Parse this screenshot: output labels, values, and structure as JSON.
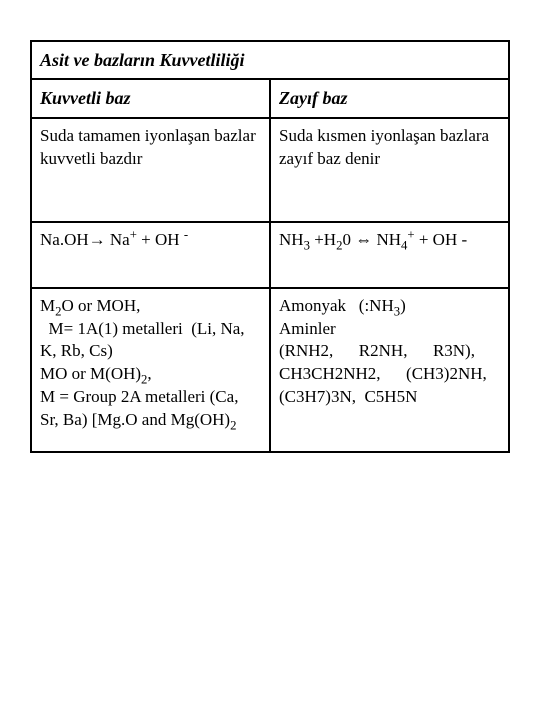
{
  "table": {
    "border_color": "#000000",
    "background_color": "#ffffff",
    "font_family": "Times New Roman",
    "title": "Asit ve bazların Kuvvetliliği",
    "headers": {
      "left": "Kuvvetli baz",
      "right": "Zayıf baz"
    },
    "rows": [
      {
        "left": "Suda tamamen iyonlaşan bazlar kuvvetli bazdır",
        "right": "Suda kısmen iyonlaşan bazlara zayıf baz denir"
      },
      {
        "left_html": "Na.OH→ Na<sup>+</sup> + OH <sup>-</sup>",
        "right_html": "NH<sub>3</sub> +H<sub>2</sub>0 ⇔ NH<sub>4</sub><sup>+</sup> + OH -"
      },
      {
        "left_html": "M<sub>2</sub>O or MOH,<br>  M= 1A(1) metalleri  (Li, Na, K, Rb, Cs)<br>MO or M(OH)<sub>2</sub>,<br>M = Group 2A metalleri (Ca, Sr, Ba) [Mg.O and Mg(OH)<sub>2</sub>",
        "right_html": "Amonyak   (:NH<sub>3</sub>)<br>Aminler<br>(RNH2,      R2NH,      R3N),<br>CH3CH2NH2,      (CH3)2NH,<br>(C3H7)3N,  C5H5N"
      }
    ]
  }
}
